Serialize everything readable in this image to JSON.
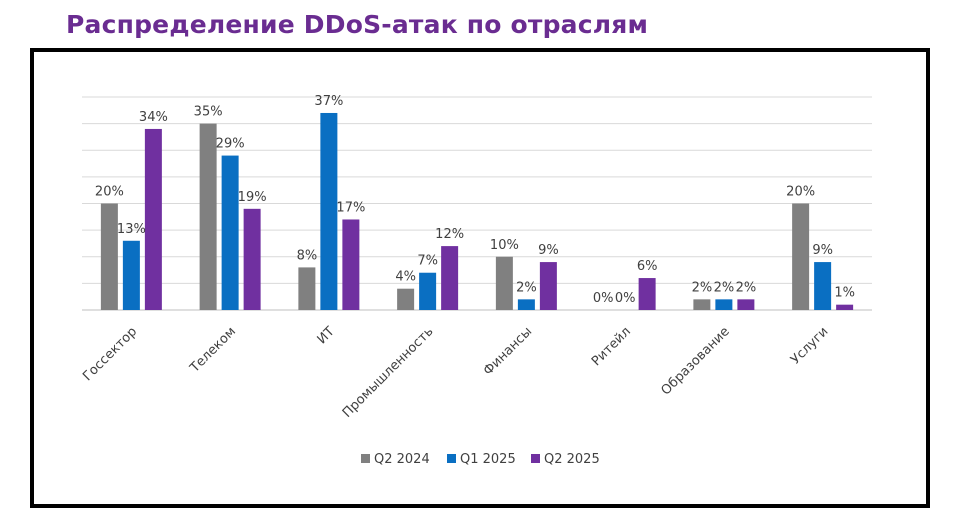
{
  "page": {
    "title": "Распределение DDoS-атак по отраслям"
  },
  "chart_data": {
    "type": "bar",
    "title": "",
    "xlabel": "",
    "ylabel": "",
    "ylim": [
      0,
      40
    ],
    "grid": true,
    "legend_position": "bottom",
    "categories": [
      "Госсектор",
      "Телеком",
      "ИТ",
      "Промышленность",
      "Финансы",
      "Ритейл",
      "Образование",
      "Услуги"
    ],
    "series": [
      {
        "name": "Q2 2024",
        "color": "#808080",
        "values": [
          20,
          35,
          8,
          4,
          10,
          0,
          2,
          20
        ],
        "labels": [
          "20%",
          "35%",
          "8%",
          "4%",
          "10%",
          "0%",
          "2%",
          "20%"
        ]
      },
      {
        "name": "Q1 2025",
        "color": "#0a6fc2",
        "values": [
          13,
          29,
          37,
          7,
          2,
          0,
          2,
          9
        ],
        "labels": [
          "13%",
          "29%",
          "37%",
          "7%",
          "2%",
          "0%",
          "2%",
          "9%"
        ]
      },
      {
        "name": "Q2 2025",
        "color": "#7030a0",
        "values": [
          34,
          19,
          17,
          12,
          9,
          6,
          2,
          1
        ],
        "labels": [
          "34%",
          "19%",
          "17%",
          "12%",
          "9%",
          "6%",
          "2%",
          "1%"
        ]
      }
    ]
  }
}
